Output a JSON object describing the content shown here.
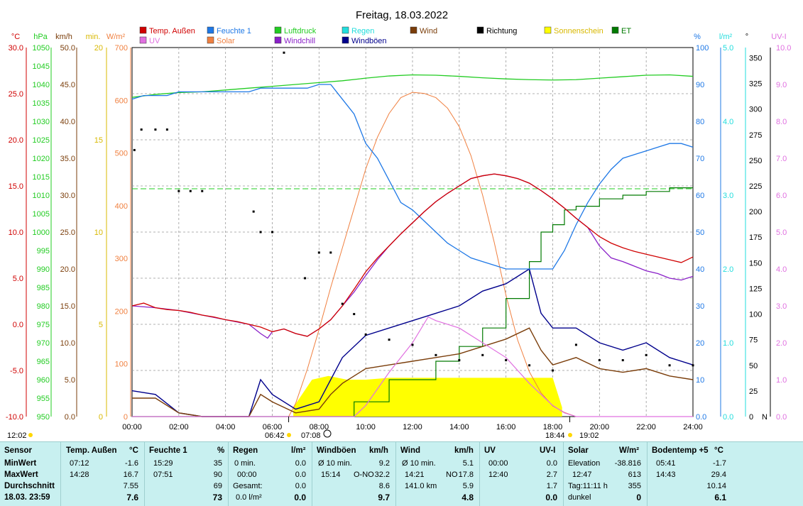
{
  "title": "Freitag, 18.03.2022",
  "colors": {
    "temp": "#d00000",
    "humidity": "#1e78e6",
    "pressure": "#22cc22",
    "rain": "#22dddd",
    "wind": "#7a3d0a",
    "direction": "#000000",
    "sunshine": "#ffff00",
    "et": "#007a00",
    "uv": "#e070e0",
    "solar": "#f08040",
    "windchill": "#8a20c8",
    "gust": "#00008c",
    "table_bg": "#c8f0f0"
  },
  "legend": [
    {
      "key": "temp",
      "label": "Temp. Außen"
    },
    {
      "key": "humidity",
      "label": "Feuchte 1"
    },
    {
      "key": "pressure",
      "label": "Luftdruck"
    },
    {
      "key": "rain",
      "label": "Regen"
    },
    {
      "key": "wind",
      "label": "Wind"
    },
    {
      "key": "direction",
      "label": "Richtung"
    },
    {
      "key": "sunshine",
      "label": "Sonnenschein"
    },
    {
      "key": "et",
      "label": "ET"
    },
    {
      "key": "uv",
      "label": "UV"
    },
    {
      "key": "solar",
      "label": "Solar"
    },
    {
      "key": "windchill",
      "label": "Windchill"
    },
    {
      "key": "gust",
      "label": "Windböen"
    }
  ],
  "axes": {
    "left_units": [
      "°C",
      "hPa",
      "km/h",
      "min.",
      "W/m²"
    ],
    "right_units": [
      "%",
      "l/m²",
      "°",
      "UV-I"
    ],
    "temp": {
      "min": -10,
      "max": 30,
      "ticks": [
        "30.0",
        "25.0",
        "20.0",
        "15.0",
        "10.0",
        "5.0",
        "0.0",
        "-5.0",
        "-10.0"
      ]
    },
    "pressure": {
      "min": 950,
      "max": 1050,
      "ticks": [
        "1050",
        "1045",
        "1040",
        "1035",
        "1030",
        "1025",
        "1020",
        "1015",
        "1010",
        "1005",
        "1000",
        "995",
        "990",
        "985",
        "980",
        "975",
        "970",
        "965",
        "960",
        "955",
        "950"
      ]
    },
    "wind": {
      "min": 0,
      "max": 50,
      "ticks": [
        "50.0",
        "45.0",
        "40.0",
        "35.0",
        "30.0",
        "25.0",
        "20.0",
        "15.0",
        "10.0",
        "5.0",
        "0.0"
      ]
    },
    "minutes": {
      "min": 0,
      "max": 20,
      "ticks": [
        "20",
        "15",
        "10",
        "5",
        "0"
      ]
    },
    "solar": {
      "min": 0,
      "max": 700,
      "ticks": [
        "700",
        "600",
        "500",
        "400",
        "300",
        "200",
        "100",
        "0"
      ]
    },
    "humidity": {
      "min": 0,
      "max": 100,
      "ticks": [
        "100",
        "90",
        "80",
        "70",
        "60",
        "50",
        "40",
        "30",
        "20",
        "10",
        "0.0"
      ]
    },
    "rain": {
      "min": 0,
      "max": 5,
      "ticks": [
        "5.0",
        "4.0",
        "3.0",
        "2.0",
        "1.0",
        "0.0"
      ]
    },
    "direction": {
      "min": 0,
      "max": 360,
      "ticks": [
        "350",
        "325",
        "300",
        "275",
        "250",
        "225",
        "200",
        "175",
        "150",
        "125",
        "100",
        "75",
        "50",
        "25",
        "0"
      ],
      "n_label": "N"
    },
    "uvi": {
      "min": 0,
      "max": 10,
      "ticks": [
        "10.0",
        "9.0",
        "8.0",
        "7.0",
        "6.0",
        "5.0",
        "4.0",
        "3.0",
        "2.0",
        "1.0",
        "0.0"
      ]
    },
    "x_ticks": [
      "00:00",
      "02:00",
      "04:00",
      "06:00",
      "08:00",
      "10:00",
      "12:00",
      "14:00",
      "16:00",
      "18:00",
      "20:00",
      "22:00",
      "24:00"
    ]
  },
  "time_markers": {
    "left": "12:02",
    "sunrise1": "06:42",
    "sunrise2": "07:08",
    "sunset1": "18:44",
    "sunset2": "19:02"
  },
  "chart_data": {
    "type": "line",
    "title": "Freitag, 18.03.2022",
    "x_unit": "hours",
    "xlim": [
      0,
      24
    ],
    "series": [
      {
        "name": "Temp. Außen",
        "unit": "°C",
        "x": [
          0,
          0.5,
          1,
          1.5,
          2,
          2.5,
          3,
          3.5,
          4,
          4.5,
          5,
          5.5,
          6,
          6.5,
          7,
          7.5,
          8,
          8.5,
          9,
          9.5,
          10,
          10.5,
          11,
          11.5,
          12,
          12.5,
          13,
          13.5,
          14,
          14.5,
          15,
          15.5,
          16,
          16.5,
          17,
          17.5,
          18,
          18.5,
          19,
          19.5,
          20,
          20.5,
          21,
          21.5,
          22,
          22.5,
          23,
          23.5,
          24
        ],
        "values": [
          2.0,
          2.3,
          1.8,
          1.6,
          1.5,
          1.3,
          1.0,
          0.8,
          0.5,
          0.3,
          0.0,
          -0.3,
          -0.8,
          -0.5,
          -1.0,
          -1.3,
          -0.5,
          0.5,
          2.0,
          3.8,
          5.7,
          7.2,
          8.5,
          9.8,
          11.0,
          12.2,
          13.3,
          14.2,
          15.0,
          15.8,
          16.1,
          16.3,
          16.1,
          15.8,
          15.3,
          14.5,
          13.6,
          12.6,
          11.5,
          10.5,
          9.5,
          8.8,
          8.3,
          7.9,
          7.6,
          7.3,
          7.0,
          6.7,
          7.3
        ]
      },
      {
        "name": "Windchill",
        "unit": "°C",
        "x": [
          0,
          1,
          2,
          3,
          4,
          5,
          5.5,
          5.8,
          6,
          6.5,
          7,
          7.5,
          8,
          8.5,
          9,
          9.5,
          10,
          10.5,
          11,
          11.5,
          12,
          12.5,
          13,
          13.5,
          14,
          14.5,
          15,
          15.5,
          16,
          16.5,
          17,
          17.5,
          18,
          18.5,
          19,
          19.5,
          20,
          20.5,
          21,
          21.5,
          22,
          22.5,
          23,
          23.5,
          24
        ],
        "values": [
          2.0,
          1.8,
          1.5,
          1.0,
          0.5,
          0.0,
          -1.0,
          -1.5,
          -0.8,
          -0.5,
          -1.0,
          -1.3,
          -0.5,
          0.5,
          2.0,
          3.5,
          5.3,
          7.0,
          8.5,
          9.8,
          11.0,
          12.2,
          13.3,
          14.2,
          15.0,
          15.8,
          16.1,
          16.3,
          16.1,
          15.8,
          15.3,
          14.5,
          13.6,
          12.6,
          11.5,
          10.5,
          8.5,
          7.2,
          6.8,
          6.3,
          5.8,
          5.5,
          5.0,
          4.8,
          5.2
        ]
      },
      {
        "name": "Feuchte 1",
        "unit": "%",
        "x": [
          0,
          0.5,
          1,
          1.5,
          2,
          2.5,
          3,
          3.5,
          4,
          4.5,
          5,
          5.5,
          6,
          6.5,
          7,
          7.5,
          8,
          8.5,
          9,
          9.5,
          10,
          10.5,
          11,
          11.5,
          12,
          12.5,
          13,
          13.5,
          14,
          14.5,
          15,
          15.5,
          16,
          16.5,
          17,
          17.5,
          18,
          18.5,
          19,
          19.5,
          20,
          20.5,
          21,
          21.5,
          22,
          22.5,
          23,
          23.5,
          24
        ],
        "values": [
          86,
          87,
          87,
          87,
          88,
          88,
          88,
          88,
          88,
          88,
          88,
          89,
          89,
          89,
          89,
          89,
          90,
          90,
          86,
          82,
          74,
          70,
          64,
          58,
          56,
          53,
          50,
          47,
          45,
          43,
          42,
          41,
          40,
          40,
          40,
          40,
          40,
          45,
          52,
          58,
          63,
          67,
          70,
          71,
          72,
          73,
          74,
          74,
          73
        ]
      },
      {
        "name": "Luftdruck",
        "unit": "hPa",
        "x": [
          0,
          1,
          2,
          3,
          4,
          5,
          6,
          7,
          8,
          9,
          10,
          11,
          12,
          13,
          14,
          15,
          16,
          17,
          18,
          19,
          20,
          21,
          22,
          23,
          24
        ],
        "values": [
          1036.5,
          1037.3,
          1037.8,
          1038.0,
          1038.5,
          1039.0,
          1039.5,
          1040.0,
          1040.5,
          1041.0,
          1041.7,
          1042.3,
          1042.6,
          1042.5,
          1042.2,
          1041.8,
          1041.5,
          1041.3,
          1041.2,
          1041.3,
          1041.7,
          1042.1,
          1042.5,
          1042.6,
          1042.2
        ]
      },
      {
        "name": "Solar",
        "unit": "W/m²",
        "x": [
          6.7,
          7,
          7.5,
          8,
          8.5,
          9,
          9.5,
          10,
          10.5,
          11,
          11.5,
          12,
          12.5,
          13,
          13.5,
          14,
          14.5,
          15,
          15.5,
          16,
          16.5,
          17,
          17.5,
          18,
          18.5,
          19
        ],
        "values": [
          0,
          25,
          90,
          165,
          245,
          320,
          395,
          470,
          530,
          575,
          605,
          615,
          613,
          605,
          585,
          550,
          495,
          420,
          330,
          230,
          145,
          85,
          45,
          20,
          8,
          0
        ]
      },
      {
        "name": "ET",
        "unit": "l/m²",
        "x": [
          0,
          7,
          9.5,
          11,
          13,
          14,
          15,
          16,
          17,
          17.5,
          18,
          18.5,
          19,
          20,
          21,
          22,
          23,
          24
        ],
        "values": [
          0,
          0,
          0.2,
          0.5,
          0.75,
          0.95,
          1.2,
          1.6,
          2.1,
          2.5,
          2.6,
          2.8,
          2.85,
          2.95,
          3.0,
          3.05,
          3.1,
          3.1
        ]
      },
      {
        "name": "Wind",
        "unit": "km/h",
        "x": [
          0,
          1,
          2,
          3,
          4,
          5,
          5.5,
          6,
          7,
          8,
          8.5,
          9,
          10,
          11,
          12,
          13,
          14,
          15,
          16,
          17,
          17.5,
          18,
          19,
          20,
          21,
          22,
          23,
          24
        ],
        "values": [
          2.5,
          2.5,
          0.5,
          0,
          0,
          0,
          3,
          2,
          0.5,
          1,
          3,
          4.5,
          6.5,
          7.0,
          7.5,
          8.0,
          8.5,
          9.5,
          10.5,
          12.0,
          9.0,
          7.0,
          8.0,
          6.5,
          6.0,
          6.5,
          5.5,
          5.0
        ]
      },
      {
        "name": "Windböen",
        "unit": "km/h",
        "x": [
          0,
          1,
          2,
          3,
          4,
          5,
          5.5,
          6,
          7,
          8,
          8.5,
          9,
          10,
          11,
          12,
          13,
          14,
          15,
          16,
          17,
          17.5,
          18,
          19,
          20,
          21,
          22,
          23,
          24
        ],
        "values": [
          3.5,
          3.0,
          0.5,
          0,
          0,
          0,
          5,
          3,
          1,
          2,
          5,
          8,
          11,
          12,
          13,
          14,
          15,
          17,
          18,
          20,
          14,
          12,
          12,
          10,
          9,
          10,
          8,
          7
        ]
      },
      {
        "name": "Richtung",
        "unit": "°",
        "x": [
          0.1,
          0.4,
          1.0,
          1.5,
          2.0,
          2.5,
          3.0,
          5.2,
          5.5,
          6.0,
          6.5,
          7.4,
          8.0,
          8.5,
          9.0,
          9.5,
          10,
          11,
          12,
          13,
          14,
          15,
          16,
          17,
          18,
          19,
          20,
          21,
          22,
          23,
          24
        ],
        "values": [
          260,
          280,
          280,
          280,
          220,
          220,
          220,
          200,
          180,
          180,
          355,
          135,
          160,
          160,
          110,
          100,
          80,
          75,
          70,
          60,
          55,
          60,
          55,
          50,
          45,
          70,
          55,
          55,
          60,
          50,
          50
        ]
      },
      {
        "name": "UV",
        "unit": "UV-I",
        "x": [
          0,
          9.5,
          10,
          11,
          12,
          12.67,
          13,
          14,
          15,
          16,
          17,
          17.5,
          18,
          18.5,
          19,
          24
        ],
        "values": [
          0,
          0,
          0.3,
          1.2,
          2.0,
          2.7,
          2.6,
          2.4,
          2.0,
          1.6,
          0.9,
          0.6,
          0.3,
          0.1,
          0,
          0
        ]
      },
      {
        "name": "Sonnenschein",
        "unit": "min.",
        "x": [
          6.9,
          7.7,
          8.4,
          9.2,
          10,
          11,
          12,
          13,
          14,
          15,
          16,
          17,
          18,
          18.4
        ],
        "values": [
          0.5,
          2.0,
          2.2,
          2.0,
          2.0,
          2.1,
          2.1,
          2.1,
          2.1,
          2.1,
          2.1,
          2.1,
          2.1,
          0.5
        ]
      }
    ]
  },
  "summary": {
    "sensor": {
      "label": "Sensor",
      "rows": [
        "MinWert",
        "MaxWert",
        "Durchschnitt",
        "18.03. 23:59"
      ]
    },
    "temp": {
      "label": "Temp. Außen",
      "unit": "°C",
      "t1": "07:12",
      "v1": "-1.6",
      "t2": "14:28",
      "v2": "16.7",
      "avg": "7.55",
      "cur": "7.6"
    },
    "hum": {
      "label": "Feuchte 1",
      "unit": "%",
      "t1": "15:29",
      "v1": "35",
      "t2": "07:51",
      "v2": "90",
      "avg": "69",
      "cur": "73"
    },
    "rain": {
      "label": "Regen",
      "unit": "l/m²",
      "l1": "0 min.",
      "v1": "0.0",
      "l2": "00:00",
      "v2": "0.0",
      "l3": "Gesamt:",
      "v3": "0.0",
      "l4": "0.0 l/m²",
      "cur": "0.0"
    },
    "gust": {
      "label": "Windböen",
      "unit": "km/h",
      "l1": "Ø 10 min.",
      "v1": "9.2",
      "t2": "15:14",
      "d2": "O-NO",
      "v2": "32.2",
      "avg": "8.6",
      "cur": "9.7"
    },
    "wind": {
      "label": "Wind",
      "unit": "km/h",
      "l1": "Ø 10 min.",
      "v1": "5.1",
      "t2": "14:21",
      "d2": "NO",
      "v2": "17.8",
      "l3": "141.0 km",
      "avg": "5.9",
      "cur": "4.8"
    },
    "uv": {
      "label": "UV",
      "unit": "UV-I",
      "t1": "00:00",
      "v1": "0.0",
      "t2": "12:40",
      "v2": "2.7",
      "avg": "1.7",
      "cur": "0.0"
    },
    "solar": {
      "label": "Solar",
      "unit": "W/m²",
      "l1": "Elevation",
      "v1": "-38.816",
      "t2": "12:47",
      "v2": "613",
      "l3": "Tag:11:11 h",
      "avg": "355",
      "l4": "dunkel",
      "cur": "0"
    },
    "soil": {
      "label": "Bodentemp +5",
      "unit": "°C",
      "t1": "05:41",
      "v1": "-1.7",
      "t2": "14:43",
      "v2": "29.4",
      "avg": "10.14",
      "cur": "6.1"
    }
  }
}
